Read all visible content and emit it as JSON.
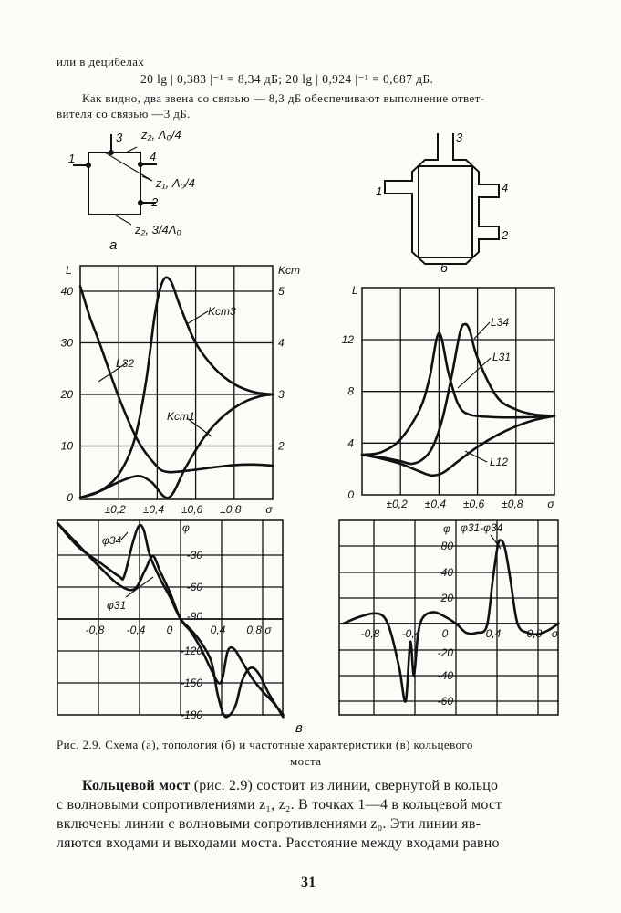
{
  "text": {
    "intro": "или в децибелах",
    "formula": "20 lg | 0,383 |⁻¹ = 8,34 дБ; 20 lg | 0,924 |⁻¹ = 0,687 дБ.",
    "para_line1": "Как видно, два звена со связью — 8,3 дБ обеспечивают выполнение ответ-",
    "para_line2": "вителя со связью —3 дБ."
  },
  "diagram_a": {
    "port1": "1",
    "port2": "2",
    "port3": "3",
    "port4": "4",
    "label_top": "z₂, Λ₀/4",
    "label_diag": "z₁, Λ₀/4",
    "label_bottom": "z₂, 3/4Λ₀",
    "letter": "a"
  },
  "diagram_b": {
    "port1": "1",
    "port2": "2",
    "port3": "3",
    "port4": "4",
    "letter": "б"
  },
  "figure_letter_v": "в",
  "chart_data": [
    {
      "type": "line",
      "xlabel": "σ",
      "ylabel": "L",
      "ylabel_right": "Kст",
      "xlim": [
        0,
        1
      ],
      "ylim": [
        0,
        45
      ],
      "ylim_right": [
        1,
        5.5
      ],
      "grid": true,
      "x_ticks": [
        "±0,2",
        "±0,4",
        "±0,6",
        "±0,8",
        "σ"
      ],
      "x_tick_values": [
        0.2,
        0.4,
        0.6,
        0.8,
        1.0
      ],
      "y_ticks": [
        "0",
        "10",
        "20",
        "30",
        "40"
      ],
      "y_tick_values": [
        0,
        10,
        20,
        30,
        40
      ],
      "y_ticks_right": [
        "2",
        "3",
        "4",
        "5"
      ],
      "y_tick_values_right": [
        2,
        3,
        4,
        5
      ],
      "series": [
        {
          "name": "L32",
          "axis": "left",
          "x": [
            0,
            0.05,
            0.1,
            0.2,
            0.3,
            0.4,
            0.45,
            0.5,
            0.6,
            0.7,
            0.8,
            0.9,
            1.0
          ],
          "y": [
            41,
            35,
            30,
            19.5,
            11,
            6,
            5,
            5,
            5.4,
            5.9,
            6.3,
            6.4,
            6.2
          ]
        },
        {
          "name": "Kст3",
          "axis": "right",
          "x": [
            0,
            0.1,
            0.2,
            0.28,
            0.34,
            0.39,
            0.43,
            0.47,
            0.52,
            0.6,
            0.7,
            0.8,
            0.9,
            1.0
          ],
          "y": [
            1.0,
            1.12,
            1.45,
            2.1,
            3.2,
            4.6,
            5.2,
            5.2,
            4.7,
            4.0,
            3.5,
            3.2,
            3.05,
            3.0
          ]
        },
        {
          "name": "Kст1",
          "axis": "right",
          "x": [
            0,
            0.1,
            0.2,
            0.3,
            0.37,
            0.46,
            0.55,
            0.65,
            0.75,
            0.85,
            0.93,
            1.0
          ],
          "y": [
            1.0,
            1.12,
            1.3,
            1.42,
            1.3,
            1.0,
            1.6,
            2.2,
            2.6,
            2.85,
            2.96,
            3.0
          ]
        }
      ]
    },
    {
      "type": "line",
      "xlabel": "σ",
      "ylabel": "L",
      "xlim": [
        0,
        1
      ],
      "ylim": [
        0,
        16
      ],
      "grid": true,
      "x_ticks": [
        "±0,2",
        "±0,4",
        "±0,6",
        "±0,8",
        "σ"
      ],
      "x_tick_values": [
        0.2,
        0.4,
        0.6,
        0.8,
        1.0
      ],
      "y_ticks": [
        "0",
        "4",
        "8",
        "12"
      ],
      "y_tick_values": [
        0,
        4,
        8,
        12
      ],
      "series": [
        {
          "name": "L34",
          "x": [
            0,
            0.1,
            0.2,
            0.26,
            0.32,
            0.37,
            0.42,
            0.47,
            0.51,
            0.535,
            0.56,
            0.6,
            0.7,
            0.8,
            0.9,
            1.0
          ],
          "y": [
            3.1,
            2.9,
            2.6,
            2.4,
            2.8,
            3.8,
            6,
            9.5,
            12.6,
            13.2,
            12.7,
            10.6,
            7.6,
            6.6,
            6.2,
            6.1
          ]
        },
        {
          "name": "L31",
          "x": [
            0,
            0.1,
            0.2,
            0.3,
            0.35,
            0.4,
            0.45,
            0.5,
            0.56,
            0.7,
            0.85,
            1.0
          ],
          "y": [
            3.1,
            3.3,
            4.3,
            6.6,
            9,
            12.5,
            9.4,
            7.0,
            6.2,
            6.0,
            6.0,
            6.1
          ]
        },
        {
          "name": "L12",
          "x": [
            0,
            0.1,
            0.2,
            0.3,
            0.36,
            0.42,
            0.5,
            0.6,
            0.7,
            0.8,
            0.9,
            1.0
          ],
          "y": [
            3.1,
            2.8,
            2.4,
            1.8,
            1.5,
            1.7,
            2.6,
            3.7,
            4.6,
            5.3,
            5.8,
            6.1
          ]
        }
      ]
    },
    {
      "type": "line",
      "xlabel": "σ",
      "ylabel": "φ",
      "xlim": [
        -1.2,
        1.0
      ],
      "ylim": [
        -190,
        0
      ],
      "grid": true,
      "x_ticks": [
        "-0,8",
        "-0,4",
        "0",
        "0,4",
        "0,8 σ"
      ],
      "x_tick_values": [
        -0.8,
        -0.4,
        0,
        0.4,
        0.8
      ],
      "y_ticks": [
        "-30",
        "-60",
        "-90",
        "-120",
        "-150",
        "-180"
      ],
      "y_tick_values": [
        -30,
        -60,
        -90,
        -120,
        -150,
        -180
      ],
      "series": [
        {
          "name": "φ34",
          "x": [
            -1.2,
            -1.0,
            -0.8,
            -0.6,
            -0.55,
            -0.47,
            -0.41,
            -0.36,
            -0.3,
            -0.2,
            -0.1,
            0,
            0.1,
            0.2,
            0.3,
            0.36,
            0.42,
            0.48,
            0.54,
            0.6,
            0.68,
            0.76,
            0.86,
            1.0
          ],
          "y": [
            0,
            -22,
            -36,
            -50,
            -50,
            -20,
            -3,
            -6,
            -30,
            -52,
            -70,
            -90,
            -100,
            -112,
            -130,
            -160,
            -180,
            -180,
            -170,
            -148,
            -136,
            -141,
            -160,
            -182
          ]
        },
        {
          "name": "φ31",
          "x": [
            -1.2,
            -1.0,
            -0.8,
            -0.6,
            -0.45,
            -0.35,
            -0.27,
            -0.2,
            -0.1,
            0,
            0.1,
            0.2,
            0.3,
            0.37,
            0.41,
            0.46,
            0.52,
            0.6,
            0.7,
            0.8,
            0.9,
            1.0
          ],
          "y": [
            0,
            -20,
            -40,
            -58,
            -62,
            -45,
            -31,
            -45,
            -66,
            -90,
            -102,
            -118,
            -138,
            -150,
            -145,
            -120,
            -118,
            -130,
            -146,
            -158,
            -168,
            -180
          ]
        }
      ]
    },
    {
      "type": "line",
      "xlabel": "σ",
      "ylabel": "φ",
      "xlim": [
        -1.14,
        1.0
      ],
      "grid": true,
      "x_ticks": [
        "-0,8",
        "-0,4",
        "0",
        "0,4",
        "0,8",
        "σ"
      ],
      "x_tick_values": [
        -0.8,
        -0.4,
        0,
        0.4,
        0.8,
        1.0
      ],
      "y_ticks": [
        "80",
        "40",
        "20",
        "-20",
        "-40",
        "-60"
      ],
      "y_tick_values": [
        80,
        40,
        20,
        -20,
        -40,
        -60
      ],
      "series": [
        {
          "name": "φ31-φ34",
          "x": [
            -1.1,
            -0.95,
            -0.8,
            -0.7,
            -0.63,
            -0.55,
            -0.49,
            -0.445,
            -0.41,
            -0.37,
            -0.32,
            -0.22,
            -0.12,
            0,
            0.1,
            0.2,
            0.3,
            0.36,
            0.41,
            0.445,
            0.48,
            0.53,
            0.6,
            0.7,
            0.8,
            0.9,
            1.0
          ],
          "y": [
            0,
            5,
            8,
            5,
            -8,
            -35,
            -60,
            -65,
            -40,
            -8,
            5,
            9,
            6,
            0,
            -7,
            -7,
            -2,
            35,
            82,
            88,
            75,
            35,
            0,
            -7,
            -8,
            -5,
            0
          ]
        }
      ]
    }
  ],
  "caption": {
    "line1": "Рис. 2.9. Схема (а), топология (б) и частотные характеристики (в)  кольцевого",
    "line2": "моста"
  },
  "body": {
    "term": "Кольцевой мост",
    "line1_rest": " (рис. 2.9) состоит из линии, свернутой в кольцо",
    "line2": "с волновыми сопротивлениями z₁, z₂. В точках 1—4 в кольцевой мост",
    "line3": "включены линии с волновыми сопротивлениями z₀. Эти линии яв-",
    "line4": "ляются входами и выходами моста. Расстояние между входами равно"
  },
  "page_number": "31"
}
